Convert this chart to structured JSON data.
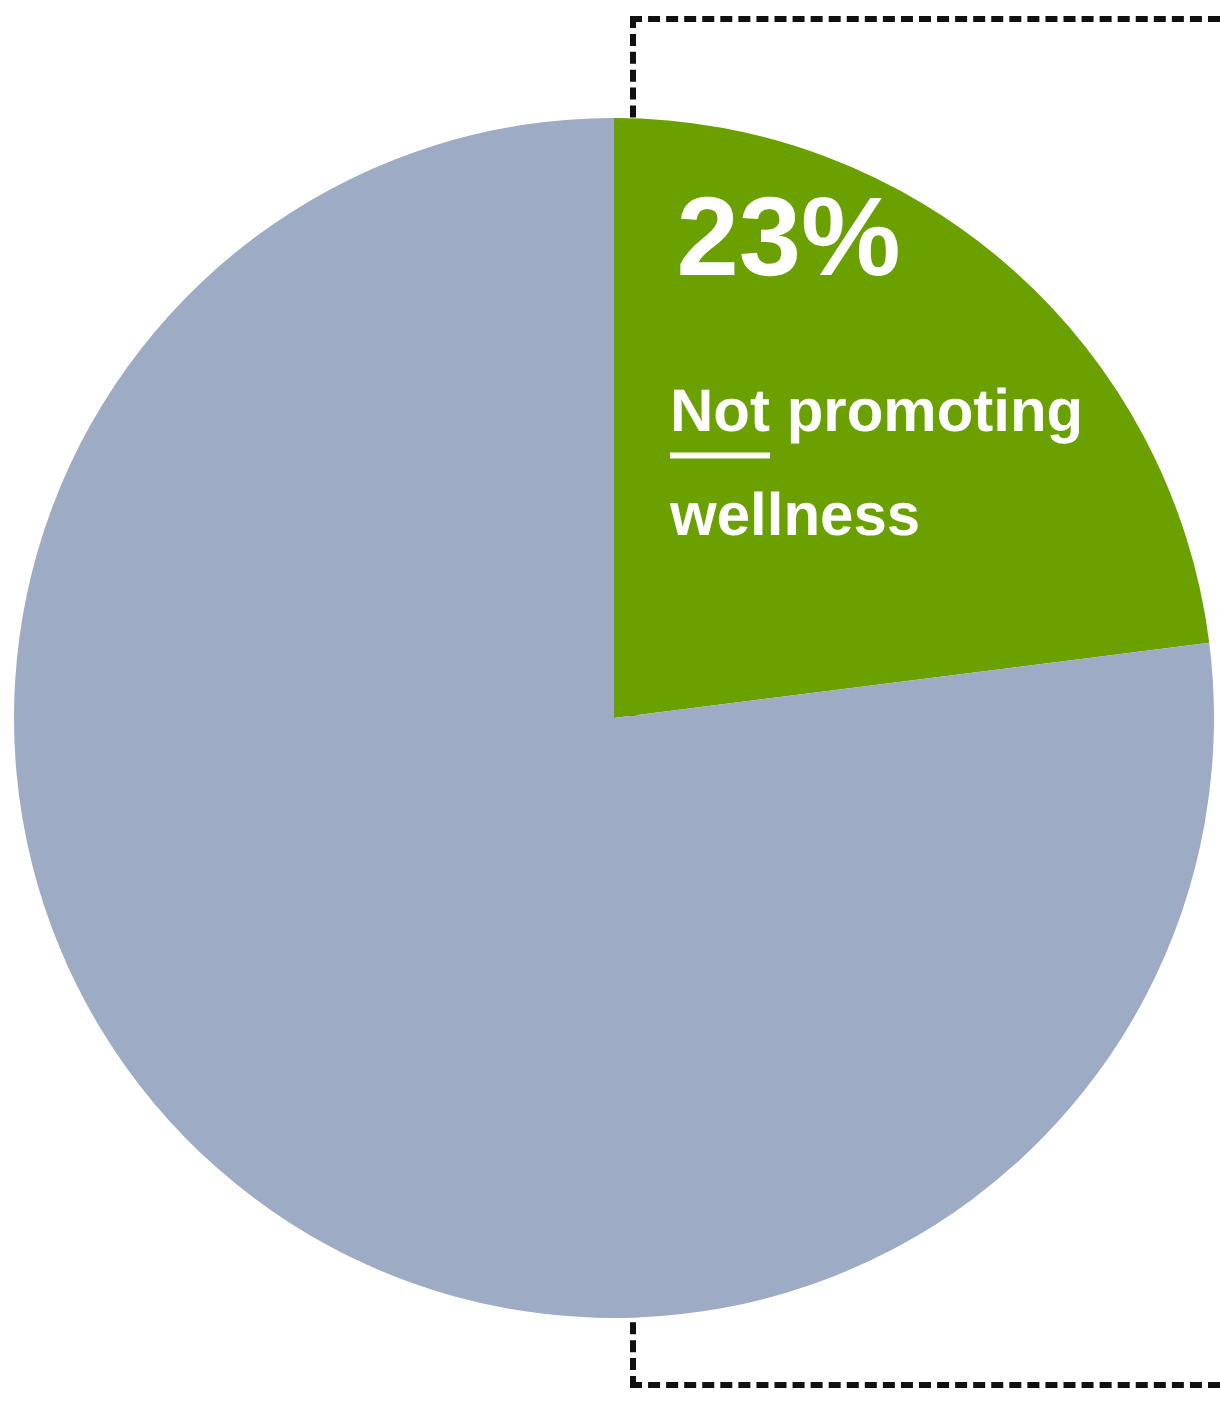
{
  "chart_data": {
    "type": "pie",
    "categories": [
      "Not promoting wellness",
      null
    ],
    "values": [
      23,
      77
    ],
    "colors": [
      "#6aa100",
      "#9dabc4"
    ],
    "value_labels": [
      "23%",
      null
    ],
    "legend": false
  }
}
